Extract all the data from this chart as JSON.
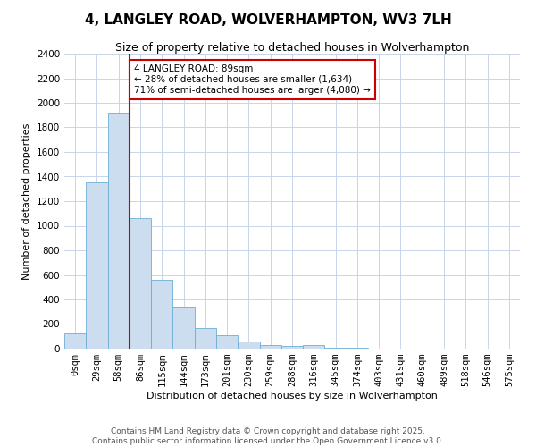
{
  "title": "4, LANGLEY ROAD, WOLVERHAMPTON, WV3 7LH",
  "subtitle": "Size of property relative to detached houses in Wolverhampton",
  "xlabel": "Distribution of detached houses by size in Wolverhampton",
  "ylabel": "Number of detached properties",
  "bar_labels": [
    "0sqm",
    "29sqm",
    "58sqm",
    "86sqm",
    "115sqm",
    "144sqm",
    "173sqm",
    "201sqm",
    "230sqm",
    "259sqm",
    "288sqm",
    "316sqm",
    "345sqm",
    "374sqm",
    "403sqm",
    "431sqm",
    "460sqm",
    "489sqm",
    "518sqm",
    "546sqm",
    "575sqm"
  ],
  "bar_values": [
    125,
    1350,
    1920,
    1060,
    560,
    340,
    165,
    110,
    60,
    30,
    20,
    30,
    10,
    5,
    3,
    2,
    1,
    1,
    0,
    1,
    0
  ],
  "bar_color": "#ccddf0",
  "bar_edge_color": "#6baed6",
  "vline_x_index": 3,
  "vline_color": "#cc0000",
  "annotation_text": "4 LANGLEY ROAD: 89sqm\n← 28% of detached houses are smaller (1,634)\n71% of semi-detached houses are larger (4,080) →",
  "annotation_box_color": "#ffffff",
  "annotation_box_edge": "#cc0000",
  "ylim": [
    0,
    2400
  ],
  "yticks": [
    0,
    200,
    400,
    600,
    800,
    1000,
    1200,
    1400,
    1600,
    1800,
    2000,
    2200,
    2400
  ],
  "footer_line1": "Contains HM Land Registry data © Crown copyright and database right 2025.",
  "footer_line2": "Contains public sector information licensed under the Open Government Licence v3.0.",
  "background_color": "#ffffff",
  "grid_color": "#c8d4e8",
  "title_fontsize": 11,
  "subtitle_fontsize": 9,
  "axis_label_fontsize": 8,
  "tick_fontsize": 7.5,
  "footer_fontsize": 6.5,
  "annotation_fontsize": 7.5
}
